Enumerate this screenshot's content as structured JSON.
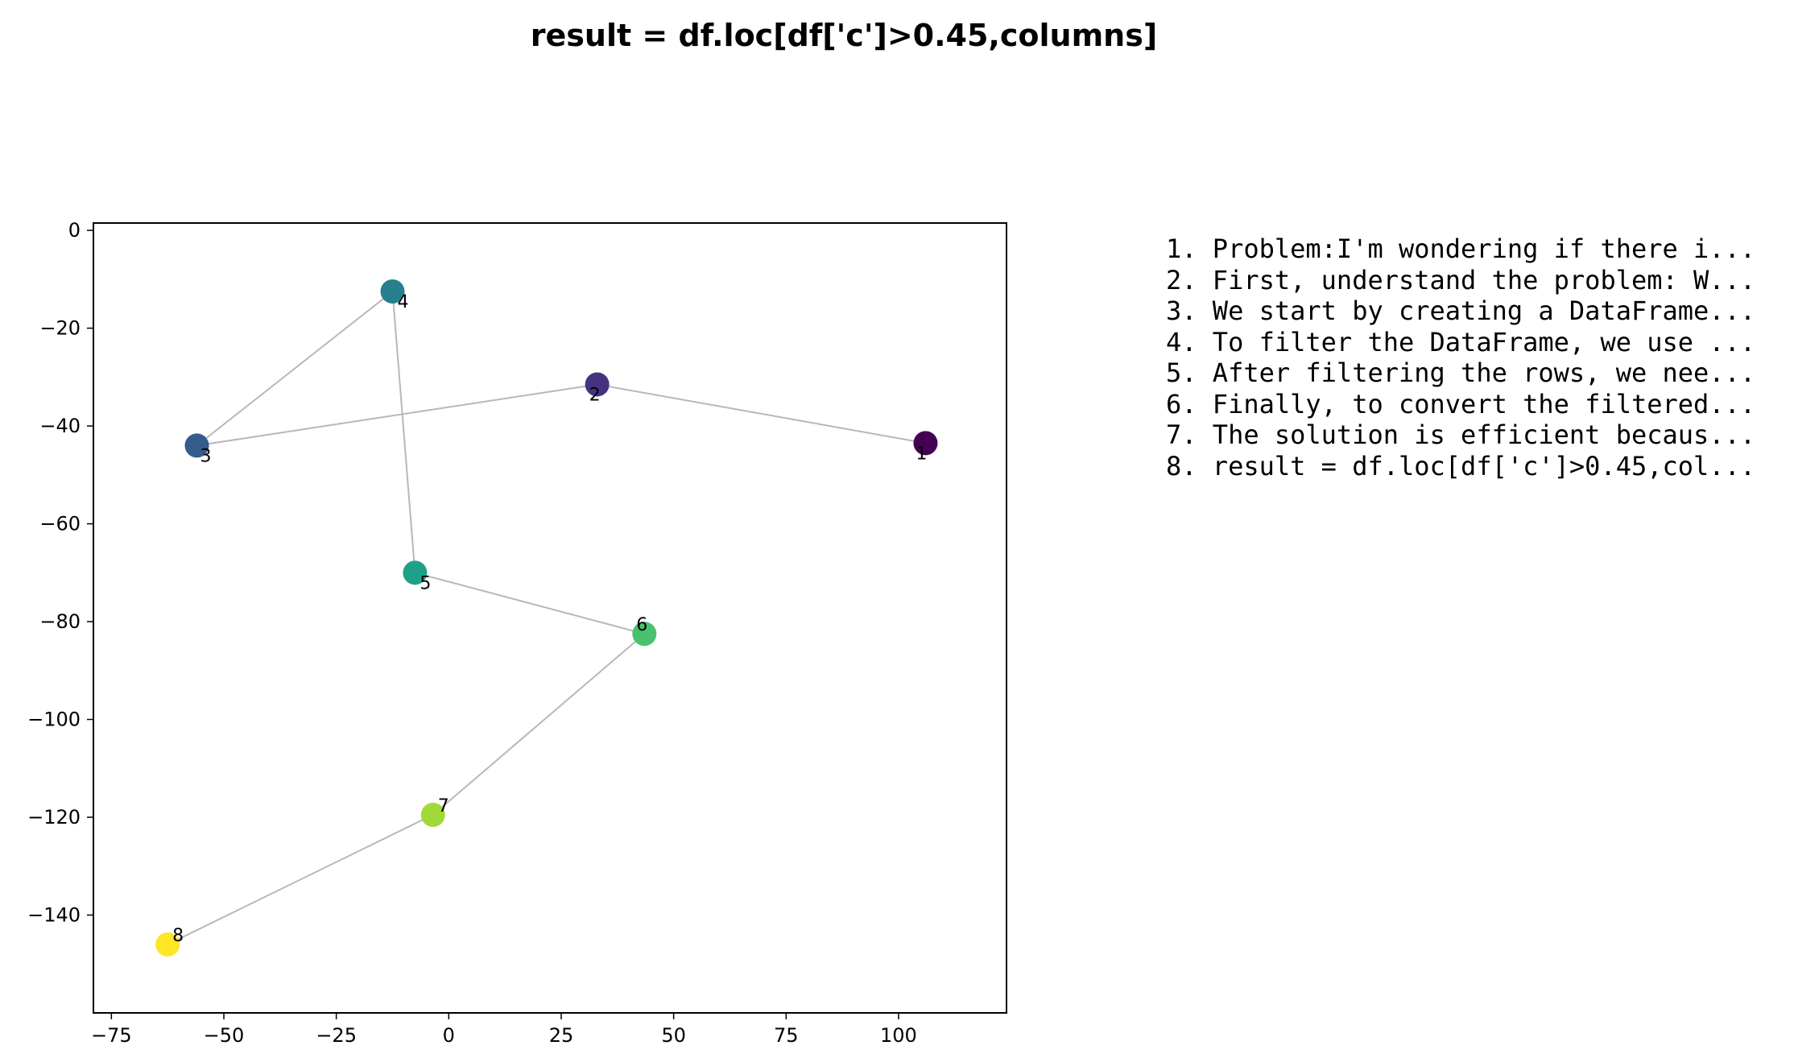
{
  "chart_data": {
    "type": "scatter",
    "title": "result = df.loc[df['c']>0.45,columns]",
    "xlabel": "",
    "ylabel": "",
    "xlim": [
      -79,
      124
    ],
    "ylim": [
      -160,
      1.5
    ],
    "x_ticks": [
      -75,
      -50,
      -25,
      0,
      25,
      50,
      75,
      100
    ],
    "x_tick_labels": [
      "−75",
      "−50",
      "−25",
      "0",
      "25",
      "50",
      "75",
      "100"
    ],
    "y_ticks": [
      0,
      -20,
      -40,
      -60,
      -80,
      -100,
      -120,
      -140
    ],
    "y_tick_labels": [
      "0",
      "−20",
      "−40",
      "−60",
      "−80",
      "−100",
      "−120",
      "−140"
    ],
    "grid": false,
    "connect_points": true,
    "line_color": "#b8b8b8",
    "colormap": "viridis",
    "points": [
      {
        "label": "1",
        "x": 106,
        "y": -43.5,
        "color": "#440154"
      },
      {
        "label": "2",
        "x": 33,
        "y": -31.5,
        "color": "#46327e"
      },
      {
        "label": "3",
        "x": -56,
        "y": -44,
        "color": "#365c8d"
      },
      {
        "label": "4",
        "x": -12.5,
        "y": -12.5,
        "color": "#277f8e"
      },
      {
        "label": "5",
        "x": -7.5,
        "y": -70,
        "color": "#1fa187"
      },
      {
        "label": "6",
        "x": 43.5,
        "y": -82.5,
        "color": "#4ac16d"
      },
      {
        "label": "7",
        "x": -3.5,
        "y": -119.5,
        "color": "#a0da39"
      },
      {
        "label": "8",
        "x": -62.5,
        "y": -146,
        "color": "#fde725"
      }
    ]
  },
  "steps": [
    "1. Problem:I'm wondering if there i...",
    "2. First, understand the problem: W...",
    "3. We start by creating a DataFrame...",
    "4. To filter the DataFrame, we use ...",
    "5. After filtering the rows, we nee...",
    "6. Finally, to convert the filtered...",
    "7. The solution is efficient becaus...",
    "8. result = df.loc[df['c']>0.45,col..."
  ]
}
